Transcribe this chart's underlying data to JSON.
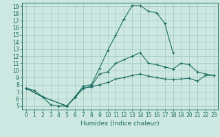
{
  "title": "",
  "xlabel": "Humidex (Indice chaleur)",
  "background_color": "#cde8e0",
  "line_color": "#1a6b60",
  "grid_color": "#a0c8be",
  "xlim": [
    -0.5,
    23.5
  ],
  "ylim": [
    4.5,
    19.5
  ],
  "yticks": [
    5,
    6,
    7,
    8,
    9,
    10,
    11,
    12,
    13,
    14,
    15,
    16,
    17,
    18,
    19
  ],
  "xticks": [
    0,
    1,
    2,
    3,
    4,
    5,
    6,
    7,
    8,
    9,
    10,
    11,
    12,
    13,
    14,
    15,
    16,
    17,
    18,
    19,
    20,
    21,
    22,
    23
  ],
  "curve1_x": [
    0,
    1,
    2,
    3,
    4,
    5,
    6,
    7,
    8,
    9,
    10,
    11,
    12,
    13,
    14,
    15,
    16,
    17,
    18
  ],
  "curve1_y": [
    7.5,
    7.2,
    6.3,
    5.2,
    5.0,
    5.0,
    6.3,
    7.8,
    8.0,
    10.3,
    12.8,
    15.0,
    17.2,
    19.1,
    19.1,
    18.3,
    18.1,
    16.6,
    12.5
  ],
  "curve2_x": [
    0,
    2,
    5,
    6,
    7,
    8,
    9,
    10,
    11,
    12,
    13,
    14,
    15,
    16,
    17,
    18,
    19,
    20,
    21,
    22,
    23
  ],
  "curve2_y": [
    7.5,
    6.3,
    5.0,
    6.2,
    7.5,
    7.8,
    9.5,
    9.8,
    11.0,
    11.5,
    12.0,
    12.5,
    11.0,
    10.8,
    10.5,
    10.2,
    11.0,
    10.8,
    9.8,
    9.5,
    9.3
  ],
  "curve3_x": [
    0,
    2,
    5,
    6,
    7,
    8,
    9,
    10,
    11,
    12,
    13,
    14,
    15,
    16,
    17,
    18,
    19,
    20,
    21,
    22,
    23
  ],
  "curve3_y": [
    7.5,
    6.3,
    5.0,
    6.2,
    7.5,
    7.7,
    8.0,
    8.3,
    8.8,
    9.0,
    9.3,
    9.5,
    9.2,
    9.0,
    8.8,
    8.7,
    8.8,
    8.9,
    8.5,
    9.3,
    9.3
  ],
  "tick_fontsize": 5.5,
  "xlabel_fontsize": 6.5,
  "lw": 0.8,
  "marker_size": 2.5
}
